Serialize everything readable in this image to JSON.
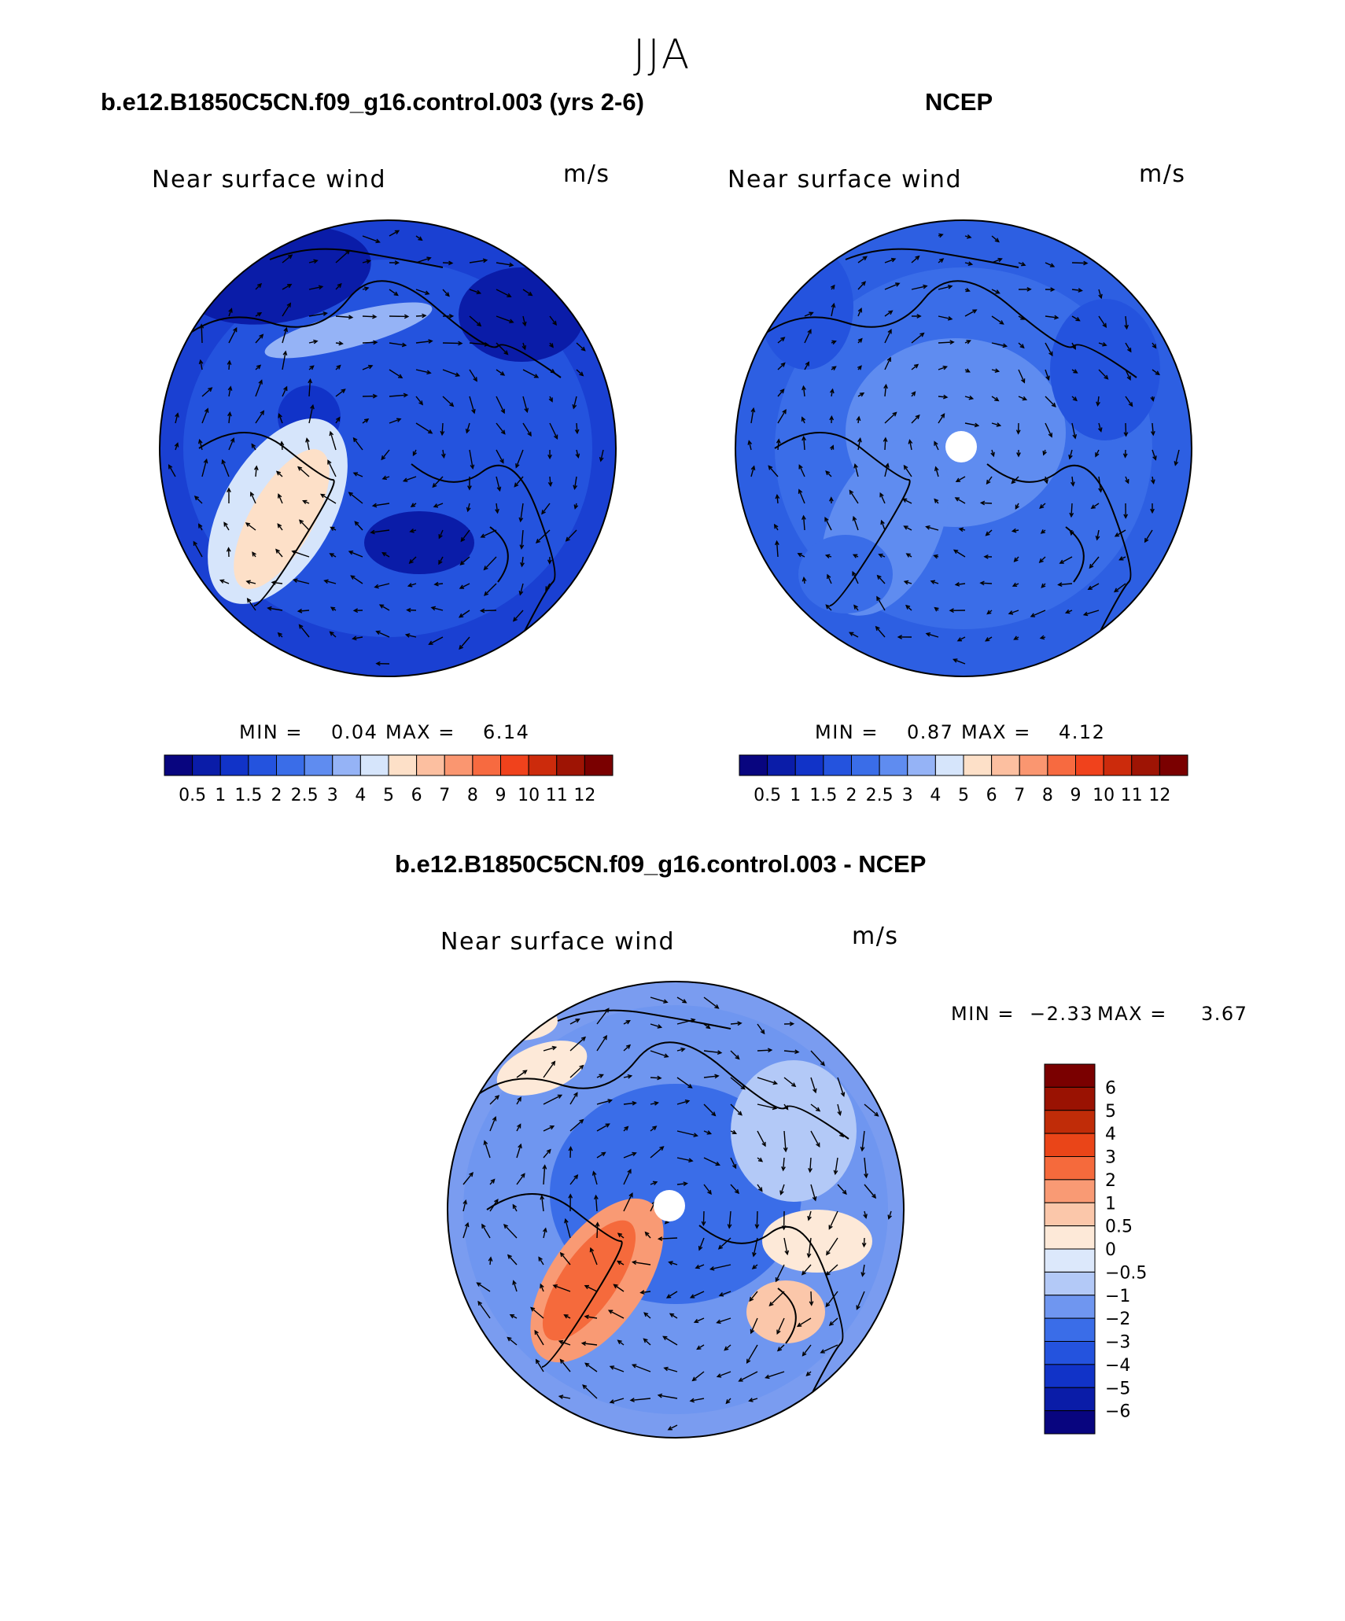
{
  "season": "JJA",
  "colors": {
    "fill_palette": [
      "#08057f",
      "#0a1ca8",
      "#1133c8",
      "#2453de",
      "#3a6de8",
      "#5f8cf0",
      "#95b3f6",
      "#d6e5fb",
      "#fde0c8",
      "#fcbfa0",
      "#fa9670",
      "#f76a40",
      "#f0421c",
      "#cc2b0c",
      "#9e1404",
      "#7a0000"
    ],
    "diff_palette": [
      "#08057f",
      "#0a1ca8",
      "#1133c8",
      "#2453de",
      "#3a6de8",
      "#6f96f0",
      "#b3c9f7",
      "#dce8fb",
      "#fde9d8",
      "#fbc7aa",
      "#f99a74",
      "#f56a3c",
      "#ea4518",
      "#c02c08",
      "#9a1202"
    ],
    "panel_model_bg": "#1a40d2",
    "panel_obs_bg": "#2d5fe2",
    "panel_diff_bg": "#7a9cf0"
  },
  "panels": [
    {
      "title": "b.e12.B1850C5CN.f09_g16.control.003 (yrs 2-6)",
      "field_label": "Near surface wind",
      "units": "m/s",
      "min_label": "MIN =",
      "min_value": "0.04",
      "max_label": "MAX =",
      "max_value": "6.14",
      "colorbar_ticks": [
        "0.5",
        "1",
        "1.5",
        "2",
        "2.5",
        "3",
        "4",
        "5",
        "6",
        "7",
        "8",
        "9",
        "10",
        "11",
        "12"
      ]
    },
    {
      "title": "NCEP",
      "field_label": "Near surface wind",
      "units": "m/s",
      "min_label": "MIN =",
      "min_value": "0.87",
      "max_label": "MAX =",
      "max_value": "4.12",
      "colorbar_ticks": [
        "0.5",
        "1",
        "1.5",
        "2",
        "2.5",
        "3",
        "4",
        "5",
        "6",
        "7",
        "8",
        "9",
        "10",
        "11",
        "12"
      ]
    },
    {
      "title": "b.e12.B1850C5CN.f09_g16.control.003 - NCEP",
      "field_label": "Near surface wind",
      "units": "m/s",
      "min_label": "MIN =",
      "min_value": "−2.33",
      "max_label": "MAX =",
      "max_value": "3.67",
      "colorbar_ticks": [
        "6",
        "5",
        "4",
        "3",
        "2",
        "1",
        "0.5",
        "0",
        "−0.5",
        "−1",
        "−2",
        "−3",
        "−4",
        "−5",
        "−6"
      ]
    }
  ]
}
